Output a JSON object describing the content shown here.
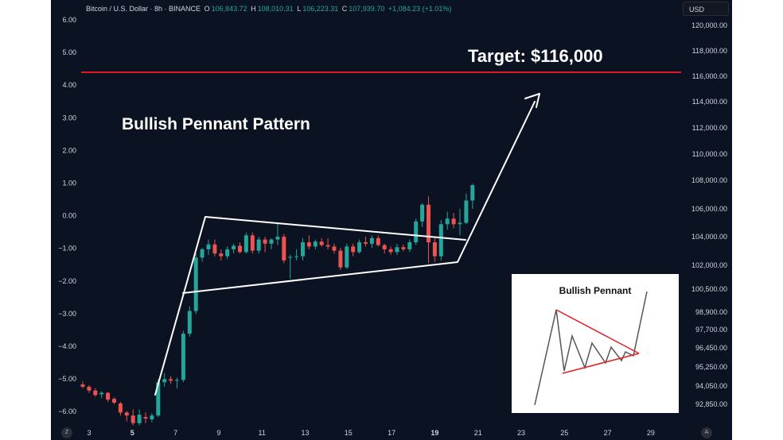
{
  "header": {
    "symbol": "Bitcoin / U.S. Dollar · 8h · BINANCE",
    "open_label": "O",
    "open": "106,843.72",
    "high_label": "H",
    "high": "108,010.31",
    "low_label": "L",
    "low": "106,223.31",
    "close_label": "C",
    "close": "107,939.70",
    "change": "+1,084.23 (+1.01%)"
  },
  "currency_button": "USD",
  "annotations": {
    "target": "Target: $116,000",
    "pattern": "Bullish Pennant Pattern"
  },
  "inset": {
    "title": "Bullish Pennant"
  },
  "corner_buttons": {
    "left": "Z",
    "right": "A"
  },
  "colors": {
    "background": "#0b1221",
    "up": "#26a69a",
    "down": "#ef5350",
    "target_line": "#e31b23",
    "drawing": "#ffffff"
  },
  "chart_data": {
    "type": "candlestick",
    "symbol": "Bitcoin / U.S. Dollar",
    "interval": "8h",
    "exchange": "BINANCE",
    "left_axis_ticks": [
      "6.00",
      "5.00",
      "4.00",
      "3.00",
      "2.00",
      "1.00",
      "0.00",
      "−1.00",
      "−2.00",
      "−3.00",
      "−4.00",
      "−5.00",
      "−6.00"
    ],
    "right_axis_ticks": [
      "120,000.00",
      "118,000.00",
      "116,000.00",
      "114,000.00",
      "112,000.00",
      "110,000.00",
      "108,000.00",
      "106,000.00",
      "104,000.00",
      "102,000.00",
      "100,500.00",
      "98,900.00",
      "97,700.00",
      "96,450.00",
      "95,250.00",
      "94,050.00",
      "92,850.00"
    ],
    "x_ticks": [
      "3",
      "5",
      "7",
      "9",
      "11",
      "13",
      "15",
      "17",
      "19",
      "21",
      "23",
      "25",
      "27",
      "29"
    ],
    "x_ticks_bold": [
      "5",
      "19"
    ],
    "target_level": 116000,
    "candles": [
      {
        "o": 94150,
        "h": 94350,
        "l": 93900,
        "c": 94000
      },
      {
        "o": 94000,
        "h": 94100,
        "l": 93600,
        "c": 93750
      },
      {
        "o": 93750,
        "h": 93900,
        "l": 93350,
        "c": 93450
      },
      {
        "o": 93500,
        "h": 93700,
        "l": 93250,
        "c": 93600
      },
      {
        "o": 93600,
        "h": 93650,
        "l": 93000,
        "c": 93150
      },
      {
        "o": 93200,
        "h": 93300,
        "l": 92850,
        "c": 92950
      },
      {
        "o": 92900,
        "h": 93000,
        "l": 92100,
        "c": 92300
      },
      {
        "o": 92300,
        "h": 92400,
        "l": 91700,
        "c": 92100
      },
      {
        "o": 92100,
        "h": 92500,
        "l": 91450,
        "c": 91600
      },
      {
        "o": 91600,
        "h": 92500,
        "l": 91450,
        "c": 92150
      },
      {
        "o": 92000,
        "h": 92300,
        "l": 91600,
        "c": 91900
      },
      {
        "o": 91850,
        "h": 92250,
        "l": 91650,
        "c": 92100
      },
      {
        "o": 92100,
        "h": 94500,
        "l": 92000,
        "c": 94300
      },
      {
        "o": 94300,
        "h": 94900,
        "l": 94000,
        "c": 94500
      },
      {
        "o": 94500,
        "h": 94700,
        "l": 94200,
        "c": 94400
      },
      {
        "o": 94400,
        "h": 94600,
        "l": 93900,
        "c": 94450
      },
      {
        "o": 94450,
        "h": 97700,
        "l": 94300,
        "c": 97500
      },
      {
        "o": 97500,
        "h": 99300,
        "l": 97300,
        "c": 99000
      },
      {
        "o": 99000,
        "h": 103000,
        "l": 98800,
        "c": 102700
      },
      {
        "o": 102700,
        "h": 103400,
        "l": 102400,
        "c": 103300
      },
      {
        "o": 103300,
        "h": 104000,
        "l": 102900,
        "c": 103650
      },
      {
        "o": 103650,
        "h": 104000,
        "l": 102800,
        "c": 103000
      },
      {
        "o": 103000,
        "h": 103300,
        "l": 102500,
        "c": 102800
      },
      {
        "o": 102800,
        "h": 103500,
        "l": 102600,
        "c": 103300
      },
      {
        "o": 103300,
        "h": 103700,
        "l": 103000,
        "c": 103550
      },
      {
        "o": 103550,
        "h": 103800,
        "l": 103000,
        "c": 103100
      },
      {
        "o": 103100,
        "h": 104500,
        "l": 103000,
        "c": 104300
      },
      {
        "o": 104300,
        "h": 104500,
        "l": 103000,
        "c": 103200
      },
      {
        "o": 103200,
        "h": 104200,
        "l": 103000,
        "c": 104000
      },
      {
        "o": 104000,
        "h": 104200,
        "l": 103100,
        "c": 103700
      },
      {
        "o": 103700,
        "h": 104100,
        "l": 103300,
        "c": 104000
      },
      {
        "o": 104000,
        "h": 105150,
        "l": 103600,
        "c": 104200
      },
      {
        "o": 104200,
        "h": 104400,
        "l": 102300,
        "c": 102500
      },
      {
        "o": 102700,
        "h": 102900,
        "l": 101200,
        "c": 102750
      },
      {
        "o": 102750,
        "h": 103300,
        "l": 102500,
        "c": 102800
      },
      {
        "o": 102800,
        "h": 104100,
        "l": 102500,
        "c": 103800
      },
      {
        "o": 103800,
        "h": 104300,
        "l": 103300,
        "c": 103500
      },
      {
        "o": 103500,
        "h": 104000,
        "l": 103300,
        "c": 103850
      },
      {
        "o": 103850,
        "h": 104100,
        "l": 103500,
        "c": 103600
      },
      {
        "o": 103600,
        "h": 104100,
        "l": 103300,
        "c": 103500
      },
      {
        "o": 103500,
        "h": 103700,
        "l": 103000,
        "c": 103200
      },
      {
        "o": 103200,
        "h": 103400,
        "l": 101800,
        "c": 102000
      },
      {
        "o": 102000,
        "h": 103700,
        "l": 101900,
        "c": 103500
      },
      {
        "o": 103500,
        "h": 103700,
        "l": 102800,
        "c": 103100
      },
      {
        "o": 103100,
        "h": 104000,
        "l": 103000,
        "c": 103800
      },
      {
        "o": 103800,
        "h": 104200,
        "l": 103500,
        "c": 103700
      },
      {
        "o": 103700,
        "h": 104300,
        "l": 103400,
        "c": 104100
      },
      {
        "o": 104100,
        "h": 104300,
        "l": 103500,
        "c": 103600
      },
      {
        "o": 103600,
        "h": 103700,
        "l": 103000,
        "c": 103300
      },
      {
        "o": 103300,
        "h": 103500,
        "l": 102900,
        "c": 103100
      },
      {
        "o": 103100,
        "h": 103700,
        "l": 102900,
        "c": 103450
      },
      {
        "o": 103450,
        "h": 103650,
        "l": 103150,
        "c": 103300
      },
      {
        "o": 103300,
        "h": 104000,
        "l": 103100,
        "c": 103800
      },
      {
        "o": 103800,
        "h": 105500,
        "l": 103600,
        "c": 105300
      },
      {
        "o": 105300,
        "h": 106600,
        "l": 104900,
        "c": 106500
      },
      {
        "o": 106500,
        "h": 107100,
        "l": 102300,
        "c": 103800
      },
      {
        "o": 103800,
        "h": 104100,
        "l": 102400,
        "c": 102800
      },
      {
        "o": 102800,
        "h": 105400,
        "l": 102500,
        "c": 105100
      },
      {
        "o": 105100,
        "h": 106000,
        "l": 104700,
        "c": 105500
      },
      {
        "o": 105500,
        "h": 105900,
        "l": 104800,
        "c": 105100
      },
      {
        "o": 105100,
        "h": 106200,
        "l": 104300,
        "c": 105200
      },
      {
        "o": 105200,
        "h": 107300,
        "l": 105100,
        "c": 106800
      },
      {
        "o": 106800,
        "h": 108000,
        "l": 106200,
        "c": 107900
      }
    ]
  }
}
